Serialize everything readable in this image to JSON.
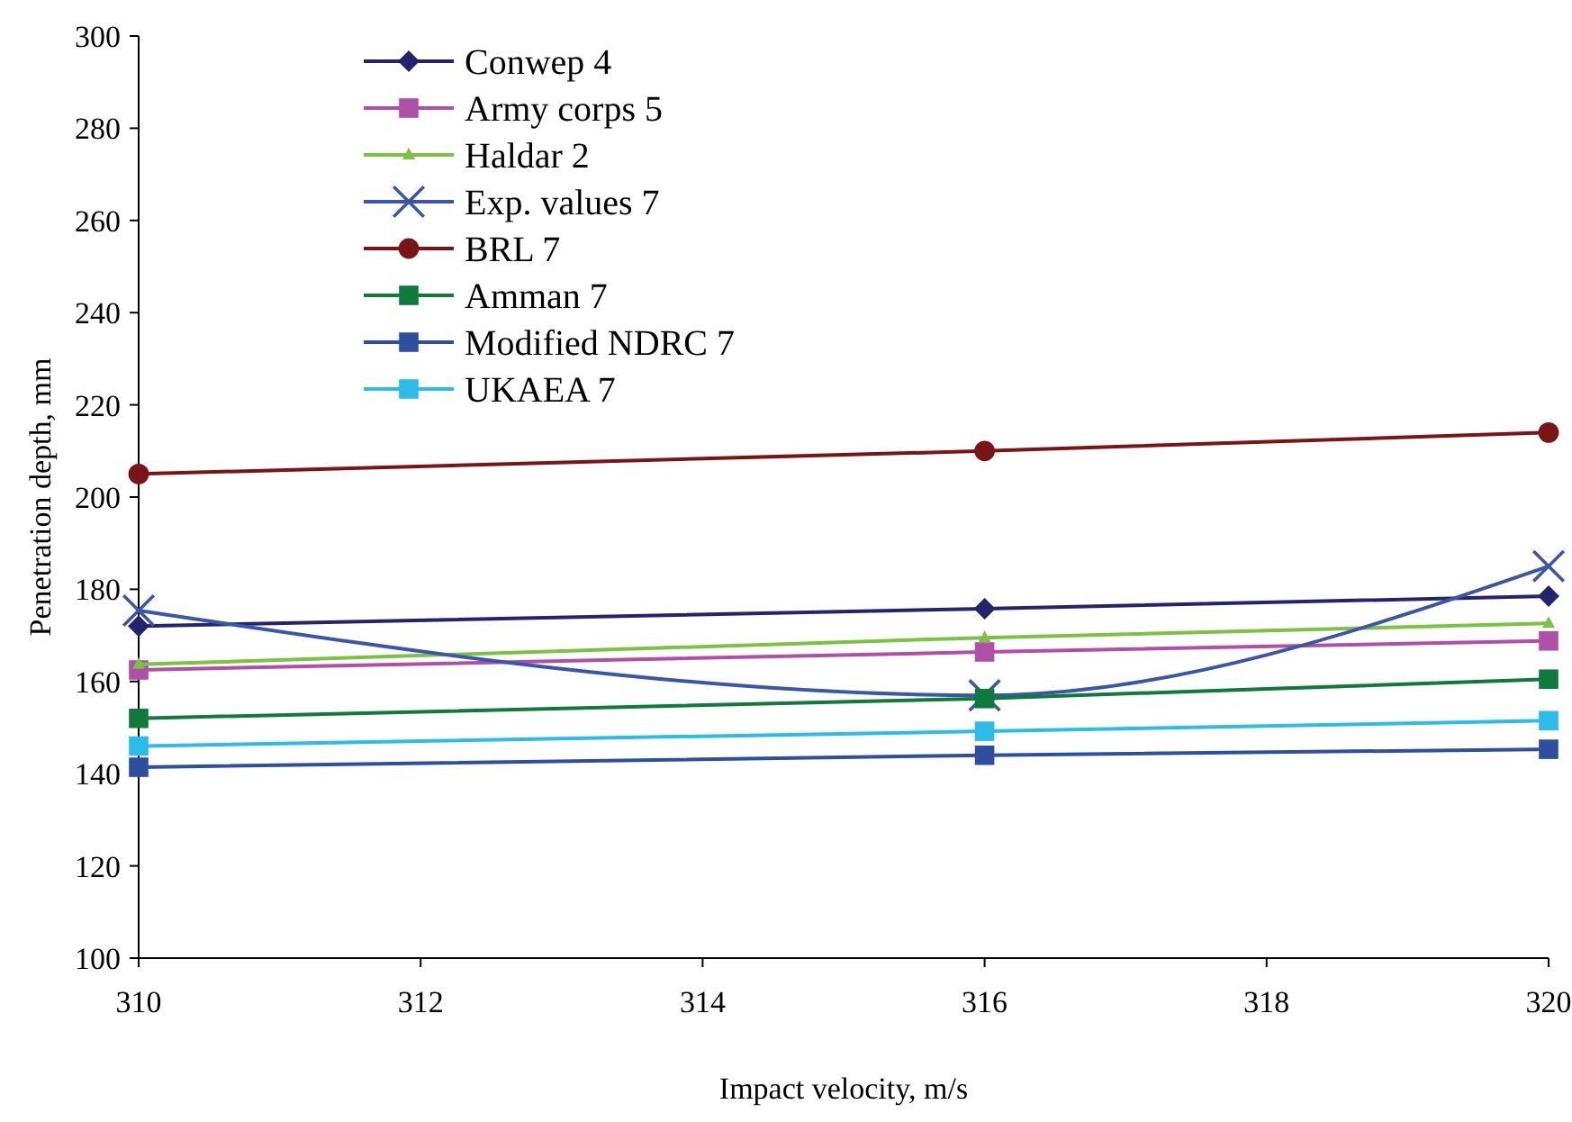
{
  "chart_data": {
    "type": "line",
    "xlabel": "Impact velocity, m/s",
    "ylabel": "Penetration depth, mm",
    "x": [
      310,
      316,
      320
    ],
    "series": [
      {
        "name": "Conwep 4",
        "color": "#24246e",
        "marker": "diamond",
        "values": [
          172,
          175.8,
          178.5
        ]
      },
      {
        "name": "Army corps 5",
        "color": "#b04fa8",
        "marker": "square",
        "values": [
          162.5,
          166.4,
          168.8
        ]
      },
      {
        "name": "Haldar 2",
        "color": "#7cc242",
        "marker": "triangle",
        "values": [
          163.7,
          169.5,
          172.6
        ]
      },
      {
        "name": "Exp. values 7",
        "color": "#3a56a8",
        "marker": "cross",
        "values": [
          175.4,
          157,
          185
        ]
      },
      {
        "name": "BRL 7",
        "color": "#7b1416",
        "marker": "circle",
        "values": [
          205,
          210,
          214
        ]
      },
      {
        "name": "Amman 7",
        "color": "#107a3c",
        "marker": "square",
        "values": [
          152,
          156.3,
          160.5
        ]
      },
      {
        "name": "Modified NDRC 7",
        "color": "#2e4fa0",
        "marker": "square",
        "values": [
          141.4,
          144,
          145.3
        ]
      },
      {
        "name": "UKAEA 7",
        "color": "#2dbbe9",
        "marker": "square",
        "values": [
          146,
          149.2,
          151.5
        ]
      }
    ],
    "xlim": [
      310,
      320
    ],
    "xticks": [
      310,
      312,
      314,
      316,
      318,
      320
    ],
    "ylim": [
      100,
      300
    ],
    "yticks": [
      100,
      120,
      140,
      160,
      180,
      200,
      220,
      240,
      260,
      280,
      300
    ],
    "legend": "top left",
    "grid": false
  }
}
